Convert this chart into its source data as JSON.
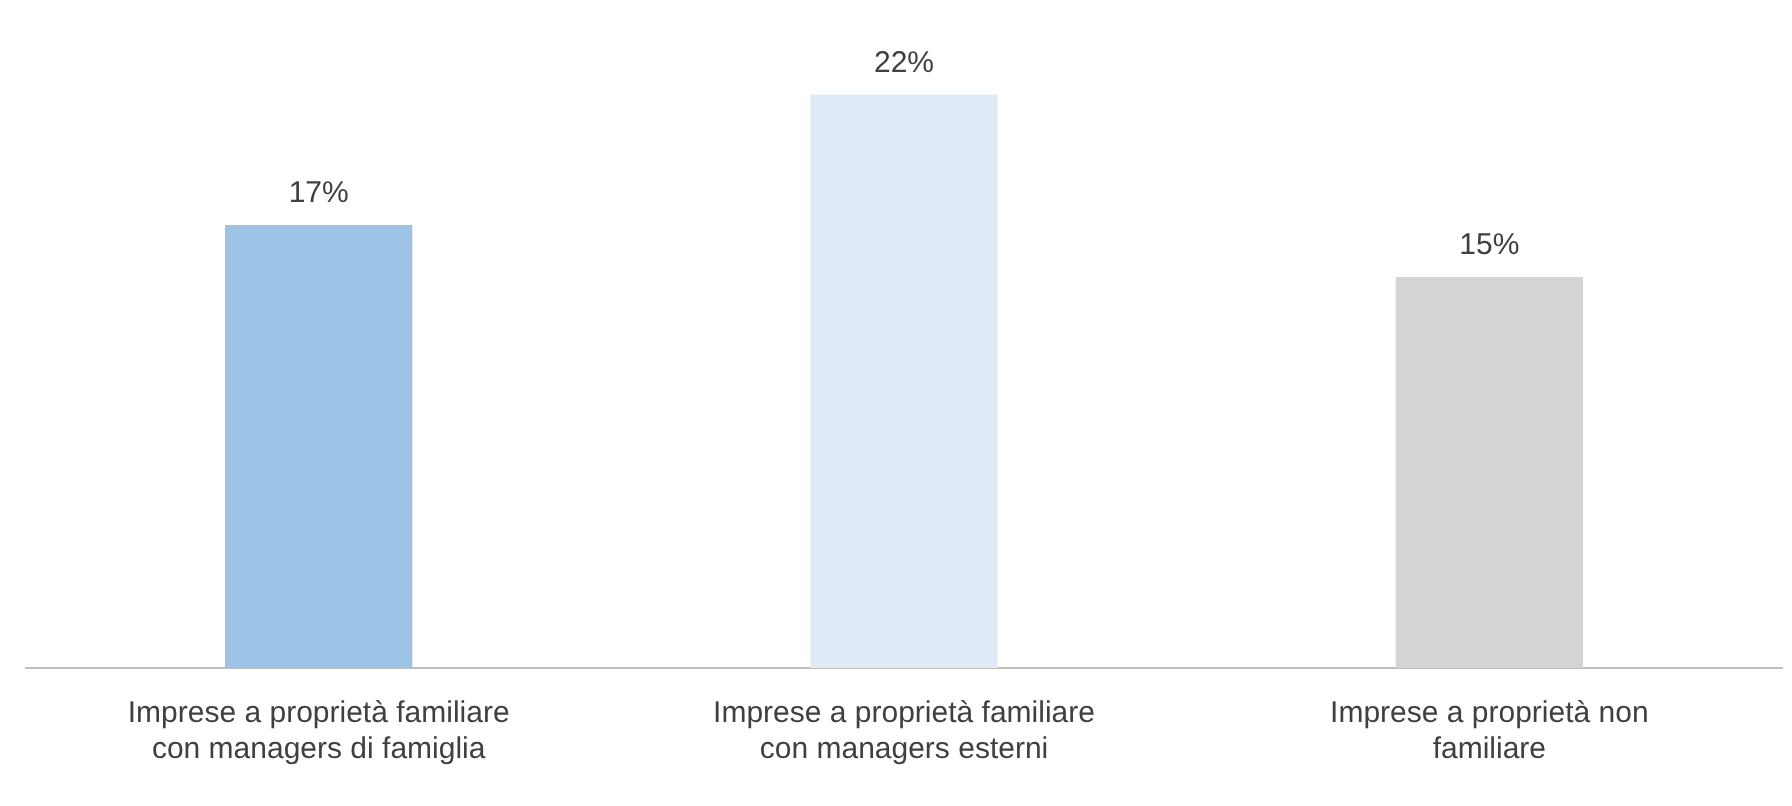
{
  "chart_data": {
    "type": "bar",
    "categories": [
      "Imprese a proprietà familiare con managers di famiglia",
      "Imprese a proprietà familiare con managers esterni",
      "Imprese a proprietà non familiare"
    ],
    "values": [
      17,
      22,
      15
    ],
    "colors": [
      "#9dc3e6",
      "#deebf7",
      "#d4d4d4"
    ],
    "data_labels": true,
    "value_labels": [
      "17%",
      "22%",
      "15%"
    ],
    "grid": false,
    "legend": false
  }
}
